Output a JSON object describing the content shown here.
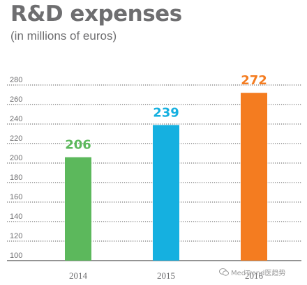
{
  "chart_data": {
    "type": "bar",
    "title": "R&D expenses",
    "subtitle": "(in millions of euros)",
    "categories": [
      "2014",
      "2015",
      "2016"
    ],
    "values": [
      206,
      239,
      272
    ],
    "data_labels": [
      "206",
      "239",
      "272"
    ],
    "ylim": [
      100,
      290
    ],
    "yticks": [
      100,
      120,
      140,
      160,
      180,
      200,
      220,
      240,
      260,
      280
    ],
    "grid": true,
    "xlabel": "",
    "ylabel": ""
  },
  "colors": {
    "bars": [
      "#5cb85c",
      "#15b0e0",
      "#f47c20"
    ],
    "labels": [
      "#5cb85c",
      "#15b0e0",
      "#f47c20"
    ],
    "text": "#6e6e70",
    "grid": "#555555"
  },
  "watermark": {
    "text": "MedTrend医趋势",
    "icon": "wechat-icon"
  }
}
